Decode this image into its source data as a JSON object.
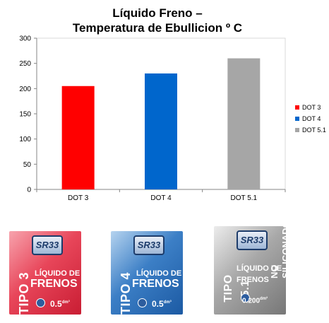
{
  "chart_data": {
    "type": "bar",
    "title_line1": "Líquido Freno –",
    "title_line2": "Temperatura de Ebullicion º C",
    "categories": [
      "DOT 3",
      "DOT 4",
      "DOT 5.1"
    ],
    "values": [
      205,
      230,
      260
    ],
    "colors": [
      "#ff0000",
      "#0066cc",
      "#a6a6a6"
    ],
    "legend": [
      "DOT 3",
      "DOT 4",
      "DOT 5.1"
    ],
    "y_ticks": [
      "0",
      "50",
      "100",
      "150",
      "200",
      "250",
      "300"
    ],
    "ylim": [
      0,
      300
    ],
    "grid": false,
    "legend_position": "right"
  },
  "products": [
    {
      "logo": "SR33",
      "tipo": "TIPO 3",
      "line1": "LÍQUIDO DE",
      "line2": "FRENOS",
      "volume": "0.5",
      "unit": "dm³"
    },
    {
      "logo": "SR33",
      "tipo": "TIPO 4",
      "line1": "LÍQUIDO DE",
      "line2": "FRENOS",
      "volume": "0.5",
      "unit": "dm³"
    },
    {
      "logo": "SR33",
      "tipo": "TIPO 5.1",
      "line1": "LÍQUIDO DE",
      "line2": "FRENOS",
      "volume": "0.200",
      "unit": "dm³",
      "side": "NO SILICONADO"
    }
  ]
}
